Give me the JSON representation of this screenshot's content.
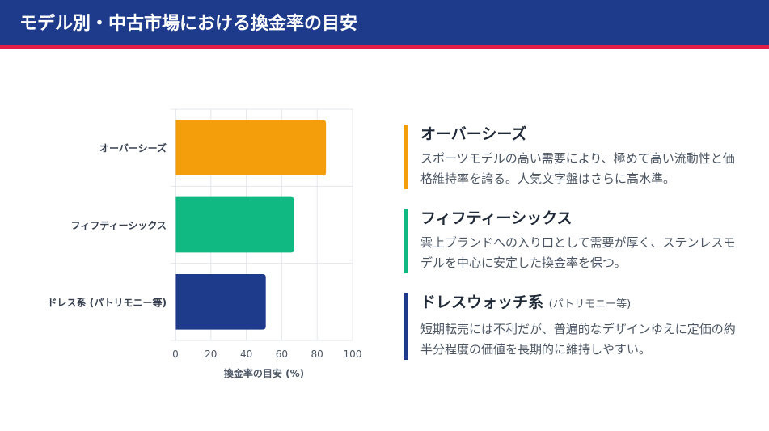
{
  "page_title": "モデル別・中古市場における換金率の目安",
  "colors": {
    "header_bg": "#1e3a8a",
    "header_accent": "#e11d48",
    "overseas": "#f59e0b",
    "fiftysix": "#10b981",
    "dress": "#1e3a8a"
  },
  "chart_data": {
    "type": "bar",
    "orientation": "horizontal",
    "categories": [
      "オーバーシーズ",
      "フィフティーシックス",
      "ドレス系 (パトリモニー等)"
    ],
    "values": [
      85,
      67,
      51
    ],
    "bar_colors": [
      "#f59e0b",
      "#10b981",
      "#1e3a8a"
    ],
    "xlabel": "換金率の目安 (%)",
    "ylabel": "",
    "xlim": [
      0,
      100
    ],
    "xticks": [
      "0",
      "20",
      "40",
      "60",
      "80",
      "100"
    ],
    "grid": true,
    "legend": "none"
  },
  "cards": [
    {
      "title": "オーバーシーズ",
      "note": "",
      "description": "スポーツモデルの高い需要により、極めて高い流動性と価格維持率を誇る。人気文字盤はさらに高水準。",
      "color": "#f59e0b"
    },
    {
      "title": "フィフティーシックス",
      "note": "",
      "description": "雲上ブランドへの入り口として需要が厚く、ステンレスモデルを中心に安定した換金率を保つ。",
      "color": "#10b981"
    },
    {
      "title": "ドレスウォッチ系",
      "note": "(パトリモニー等)",
      "description": "短期転売には不利だが、普遍的なデザインゆえに定価の約半分程度の価値を長期的に維持しやすい。",
      "color": "#1e3a8a"
    }
  ]
}
